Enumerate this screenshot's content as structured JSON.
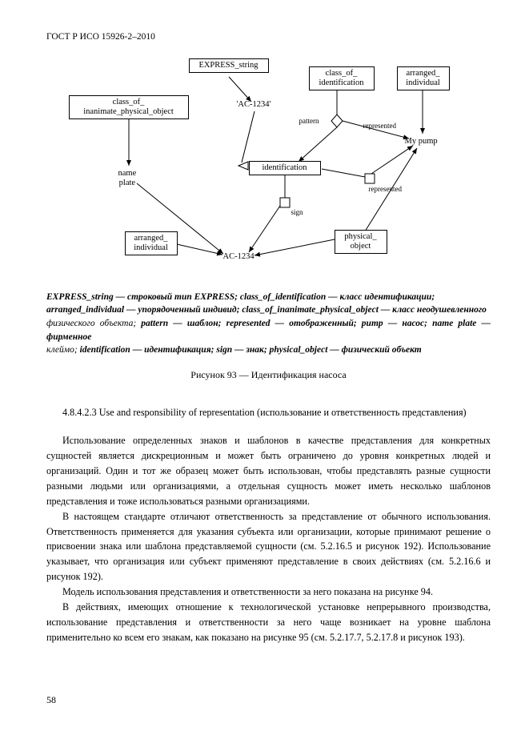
{
  "header": "ГОСТ Р ИСО 15926-2–2010",
  "diagram": {
    "boxes": {
      "express_string": "EXPRESS_string",
      "class_of_identification": "class_of_\nidentification",
      "arranged_individual_top": "arranged_\nindividual",
      "class_of_inanimate": "class_of_\ninanimate_physical_object",
      "identification": "identification",
      "arranged_individual_bottom": "arranged_\nindividual",
      "physical_object": "physical_\nobject"
    },
    "labels": {
      "ac1234_quoted": "'AC-1234'",
      "name_plate": "name\nplate",
      "my_pump": "My pump",
      "ac1234": "AC-1234"
    },
    "edgeLabels": {
      "pattern": "pattern",
      "represented": "represented",
      "represented2": "represented",
      "sign": "sign"
    }
  },
  "legend_lines": [
    {
      "i": "EXPRESS_string",
      "n": " — ",
      "t": "строковый тип EXPRESS; ",
      "i2": "class_of_identification",
      "n2": " — ",
      "t2": "класс идентификации;"
    },
    {
      "i": "arranged_individual",
      "n": " — ",
      "t": "упорядоченный индивид; ",
      "i2": "class_of_inanimate_physical_object",
      "n2": " — ",
      "t2": "класс неодушевленного"
    },
    {
      "t": "физического объекта; ",
      "i": "pattern",
      "n": " — ",
      "t2": "шаблон; ",
      "i2": "represented",
      "n2": " — ",
      "t3": "отображенный; ритр — насос; ",
      "i3": "name plate",
      "n3": " — ",
      "t4": "фирменное"
    },
    {
      "t": "клеймо; ",
      "i": "identification",
      "n": " — ",
      "t2": "идентификация; ",
      "i2": "sign",
      "n2": " — ",
      "t3": "знак; ",
      "i3": "physical_object",
      "n3": " — ",
      "t4": "физический объект"
    }
  ],
  "caption": "Рисунок 93 — Идентификация насоса",
  "section_heading": "4.8.4.2.3 Use and responsibility of representation (использование и ответственность представления)",
  "paragraphs": [
    "Использование определенных знаков и шаблонов в качестве представления для конкретных сущностей является дискреционным и может быть ограничено до уровня конкретных людей и организаций. Один и тот же образец может быть использован, чтобы представлять разные сущности разными людьми или организациями, а отдельная сущность может иметь несколько шаблонов представления и тоже использоваться разными организациями.",
    "В настоящем стандарте отличают ответственность за представление от обычного использования. Ответственность применяется для указания субъекта или организации, которые принимают решение о присвоении знака или шаблона представляемой сущности (см. 5.2.16.5 и рисунок 192). Использование указывает, что организация или субъект применяют представление в своих действиях (см. 5.2.16.6 и рисунок 192).",
    "Модель использования представления и ответственности за него показана на рисунке 94.",
    "В действиях, имеющих отношение к технологической установке непрерывного производства, использование представления и ответственности за него чаще возникает на уровне шаблона применительно ко всем его знакам, как показано на рисунке 95 (см. 5.2.17.7, 5.2.17.8 и рисунок 193)."
  ],
  "page_number": "58"
}
